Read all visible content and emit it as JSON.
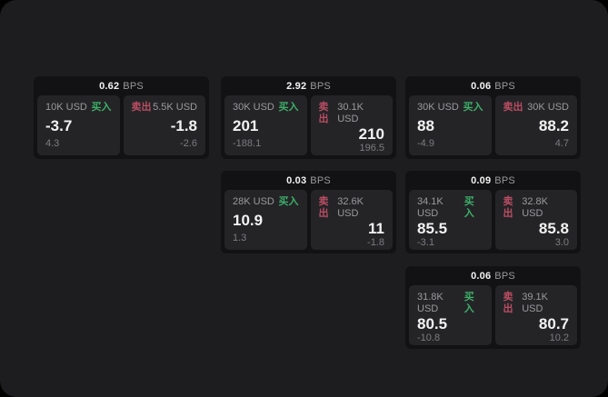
{
  "labels": {
    "bps_unit": "BPS",
    "buy": "买入",
    "sell": "卖出"
  },
  "colors": {
    "page_bg": "#1d1d1f",
    "outer_bg": "#000000",
    "card_bg": "#121214",
    "panel_bg": "#242427",
    "text_primary": "#f2f2f2",
    "text_secondary": "#9a9a9e",
    "text_muted": "#7c7c80",
    "buy_green": "#3daf68",
    "sell_red": "#bb4d62"
  },
  "cards": [
    {
      "bps": "0.62",
      "row": 0,
      "col": 0,
      "buy": {
        "amount": "10K USD",
        "price": "-3.7",
        "delta": "4.3"
      },
      "sell": {
        "amount": "5.5K USD",
        "price": "-1.8",
        "delta": "-2.6"
      }
    },
    {
      "bps": "2.92",
      "row": 0,
      "col": 1,
      "buy": {
        "amount": "30K USD",
        "price": "201",
        "delta": "-188.1"
      },
      "sell": {
        "amount": "30.1K USD",
        "price": "210",
        "delta": "196.5"
      }
    },
    {
      "bps": "0.06",
      "row": 0,
      "col": 2,
      "buy": {
        "amount": "30K USD",
        "price": "88",
        "delta": "-4.9"
      },
      "sell": {
        "amount": "30K USD",
        "price": "88.2",
        "delta": "4.7"
      }
    },
    {
      "bps": "0.03",
      "row": 1,
      "col": 1,
      "buy": {
        "amount": "28K USD",
        "price": "10.9",
        "delta": "1.3"
      },
      "sell": {
        "amount": "32.6K USD",
        "price": "11",
        "delta": "-1.8"
      }
    },
    {
      "bps": "0.09",
      "row": 1,
      "col": 2,
      "buy": {
        "amount": "34.1K USD",
        "price": "85.5",
        "delta": "-3.1"
      },
      "sell": {
        "amount": "32.8K USD",
        "price": "85.8",
        "delta": "3.0"
      }
    },
    {
      "bps": "0.06",
      "row": 2,
      "col": 2,
      "buy": {
        "amount": "31.8K USD",
        "price": "80.5",
        "delta": "-10.8"
      },
      "sell": {
        "amount": "39.1K USD",
        "price": "80.7",
        "delta": "10.2"
      }
    }
  ]
}
